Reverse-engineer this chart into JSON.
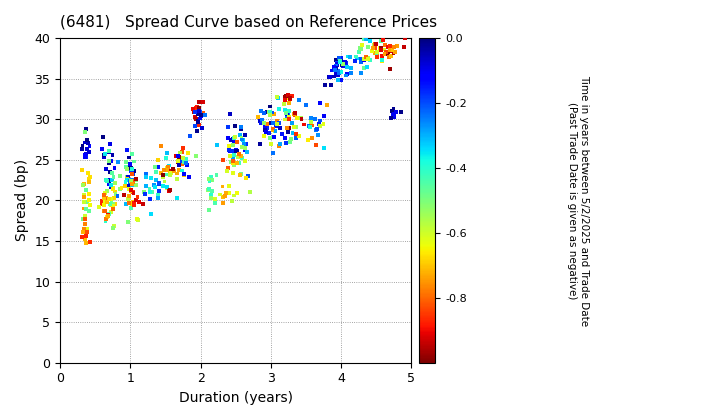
{
  "title": "(6481)   Spread Curve based on Reference Prices",
  "xlabel": "Duration (years)",
  "ylabel": "Spread (bp)",
  "colorbar_label_line1": "Time in years between 5/2/2025 and Trade Date",
  "colorbar_label_line2": "(Past Trade Date is given as negative)",
  "xlim": [
    0,
    5
  ],
  "ylim": [
    0,
    40
  ],
  "xticks": [
    0,
    1,
    2,
    3,
    4,
    5
  ],
  "yticks": [
    0,
    5,
    10,
    15,
    20,
    25,
    30,
    35,
    40
  ],
  "cmap": "jet_r",
  "vmin": -1.0,
  "vmax": 0.0,
  "colorbar_ticks": [
    0.0,
    -0.2,
    -0.4,
    -0.6,
    -0.8
  ],
  "background_color": "#ffffff",
  "grid_color": "#888888",
  "marker_size": 8,
  "seed": 42
}
